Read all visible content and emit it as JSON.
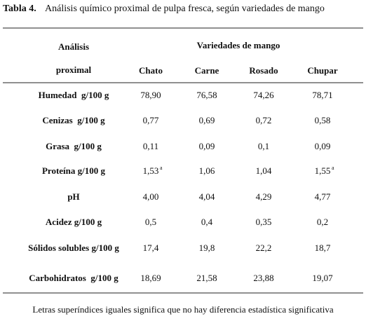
{
  "title": {
    "label": "Tabla 4.",
    "text": "Análisis químico proximal de pulpa fresca, según variedades de mango"
  },
  "table": {
    "stub_header": [
      "Análisis",
      "proximal"
    ],
    "group_header": "Variedades de mango",
    "columns": [
      "Chato",
      "Carne",
      "Rosado",
      "Chupar"
    ],
    "rows": [
      {
        "label": "Humedad  g/100 g",
        "values": [
          "78,90",
          "76,58",
          "74,26",
          "78,71"
        ]
      },
      {
        "label": "Cenizas  g/100 g",
        "values": [
          "0,77",
          "0,69",
          "0,72",
          "0,58"
        ]
      },
      {
        "label": "Grasa  g/100 g",
        "values": [
          "0,11",
          "0,09",
          "0,1",
          "0,09"
        ]
      },
      {
        "label": "Proteína g/100 g",
        "values": [
          {
            "text": "1,53",
            "sup": "a"
          },
          "1,06",
          "1,04",
          {
            "text": "1,55",
            "sup": "a"
          }
        ]
      },
      {
        "label": "pH",
        "values": [
          "4,00",
          "4,04",
          "4,29",
          "4,77"
        ]
      },
      {
        "label": "Acidez g/100 g",
        "values": [
          "0,5",
          "0,4",
          "0,35",
          "0,2"
        ]
      },
      {
        "label": "Sólidos solubles g/100 g",
        "values": [
          "17,4",
          "19,8",
          "22,2",
          "18,7"
        ]
      },
      {
        "label": "Carbohidratos  g/100 g",
        "values": [
          "18,69",
          "21,58",
          "23,88",
          "19,07"
        ]
      }
    ]
  },
  "footnote": "Letras superíndices iguales significa que no hay diferencia estadística significativa"
}
